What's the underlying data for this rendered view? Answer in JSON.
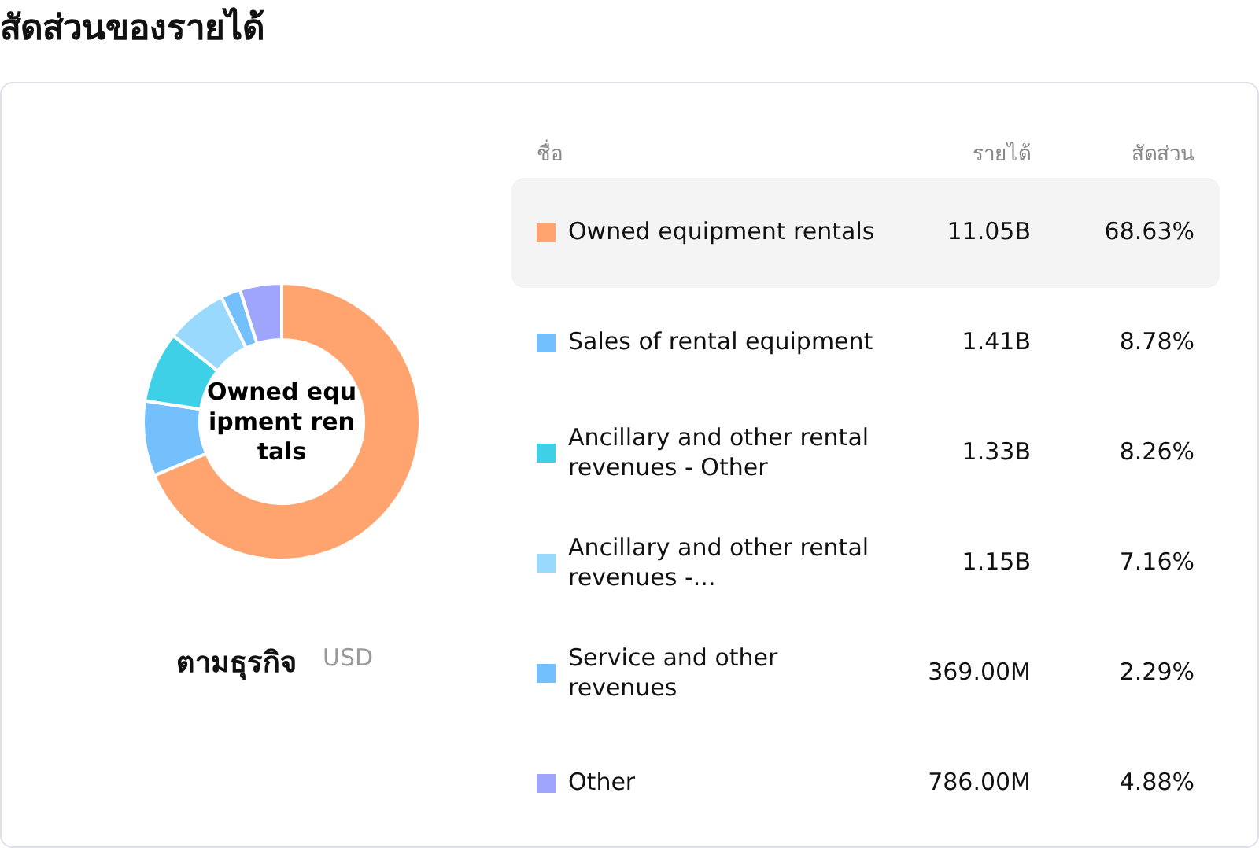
{
  "chart_data": {
    "type": "donut",
    "title": "สัดส่วนของรายได้",
    "categories": [
      "Owned equipment rentals",
      "Sales of rental equipment",
      "Ancillary and other rental revenues - Other",
      "Ancillary and other rental revenues -...",
      "Service and other revenues",
      "Other"
    ],
    "values": [
      68.63,
      8.78,
      8.26,
      7.16,
      2.29,
      4.88
    ],
    "value_labels": [
      "68.63%",
      "8.78%",
      "8.26%",
      "7.16%",
      "2.29%",
      "4.88%"
    ],
    "colors": [
      "#ffa46e",
      "#74c0fc",
      "#3dd0e6",
      "#99d9fd",
      "#74c0fc",
      "#9fa4fc"
    ],
    "legend": "right",
    "annotations": [
      "Owned equipment rentals",
      "ตามธุรกิจ",
      "USD",
      "ชื่อ",
      "รายได้",
      "สัดส่วน",
      "11.05B",
      "1.41B",
      "1.33B",
      "1.15B",
      "369.00M",
      "786.00M"
    ]
  }
}
